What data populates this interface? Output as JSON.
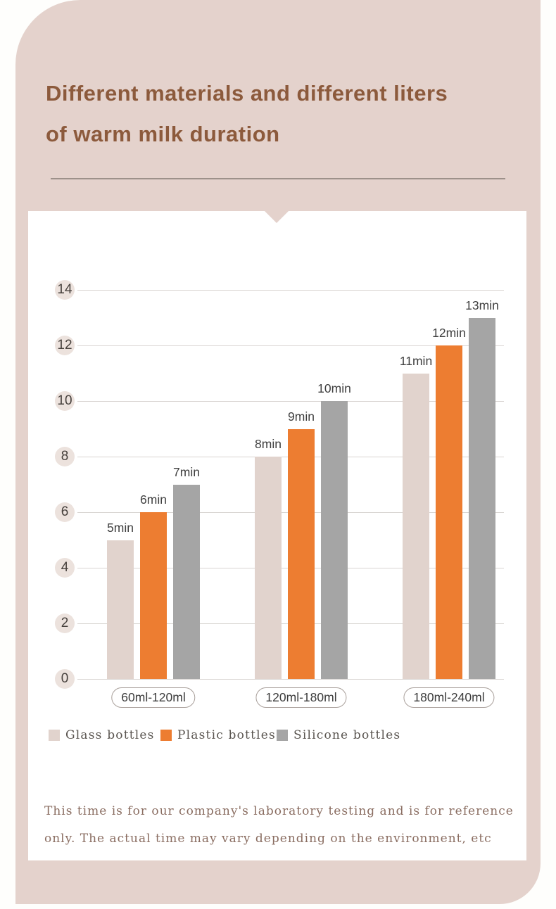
{
  "header": {
    "title_lines": [
      "Different materials and different liters",
      "of warm milk duration"
    ]
  },
  "chart_data": {
    "type": "bar",
    "title": "Different materials and different liters of warm milk duration",
    "xlabel": "",
    "ylabel": "",
    "categories": [
      "60ml-120ml",
      "120ml-180ml",
      "180ml-240ml"
    ],
    "series": [
      {
        "name": "Glass bottles",
        "color": "#e1d3cd",
        "values": [
          5,
          8,
          11
        ]
      },
      {
        "name": "Plastic bottles",
        "color": "#ed7d31",
        "values": [
          6,
          9,
          12
        ]
      },
      {
        "name": "Silicone bottles",
        "color": "#a5a5a5",
        "values": [
          7,
          10,
          13
        ]
      }
    ],
    "value_suffix": "min",
    "data_labels": [
      [
        "5min",
        "8min",
        "11min"
      ],
      [
        "6min",
        "9min",
        "12min"
      ],
      [
        "7min",
        "10min",
        "13min"
      ]
    ],
    "y_ticks": [
      0,
      2,
      4,
      6,
      8,
      10,
      12,
      14
    ],
    "ylim": [
      0,
      14
    ],
    "grid": true,
    "legend_position": "bottom"
  },
  "footnote": {
    "lines": [
      "This time is for our company's laboratory testing and is for reference",
      "only. The actual time may vary depending on the environment, etc"
    ]
  },
  "colors": {
    "panel_bg": "#e4d2cc",
    "card_bg": "#ffffff",
    "title_text": "#8c5a3c",
    "gridline": "#d8d4d1",
    "tick_badge_bg": "#ece2dd",
    "footnote_text": "#8a6d61"
  }
}
